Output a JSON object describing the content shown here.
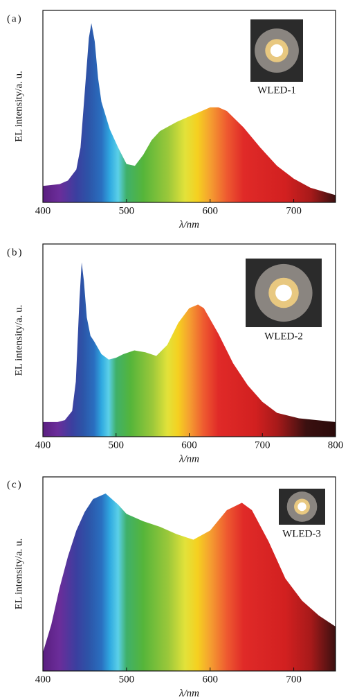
{
  "chart_data": [
    {
      "type": "area",
      "panel_label": "(a)",
      "y_label": "EL intensity/a. u.",
      "x_label": "λ/nm",
      "annotation": "WLED-1",
      "x": [
        400,
        420,
        430,
        440,
        445,
        450,
        455,
        458,
        462,
        466,
        470,
        480,
        490,
        500,
        510,
        520,
        530,
        540,
        560,
        580,
        600,
        610,
        620,
        640,
        660,
        680,
        700,
        720,
        750
      ],
      "values": [
        0.09,
        0.1,
        0.12,
        0.18,
        0.3,
        0.6,
        0.9,
        0.98,
        0.88,
        0.68,
        0.55,
        0.4,
        0.3,
        0.21,
        0.2,
        0.26,
        0.34,
        0.39,
        0.44,
        0.48,
        0.52,
        0.52,
        0.5,
        0.41,
        0.3,
        0.2,
        0.13,
        0.08,
        0.04
      ],
      "xlim": [
        400,
        750
      ],
      "xticks": [
        400,
        500,
        600,
        700
      ],
      "ylim": [
        0,
        1.05
      ]
    },
    {
      "type": "area",
      "panel_label": "(b)",
      "y_label": "EL intensity/a. u.",
      "x_label": "λ/nm",
      "annotation": "WLED-2",
      "x": [
        400,
        420,
        430,
        440,
        445,
        450,
        453,
        456,
        460,
        465,
        470,
        480,
        490,
        500,
        510,
        525,
        540,
        555,
        570,
        585,
        600,
        612,
        620,
        640,
        660,
        680,
        700,
        720,
        750,
        800
      ],
      "values": [
        0.08,
        0.08,
        0.09,
        0.14,
        0.3,
        0.75,
        0.95,
        0.85,
        0.65,
        0.55,
        0.52,
        0.45,
        0.42,
        0.43,
        0.45,
        0.47,
        0.46,
        0.44,
        0.5,
        0.62,
        0.7,
        0.72,
        0.7,
        0.56,
        0.4,
        0.28,
        0.19,
        0.13,
        0.1,
        0.08
      ],
      "xlim": [
        400,
        800
      ],
      "xticks": [
        400,
        500,
        600,
        700,
        800
      ],
      "ylim": [
        0,
        1.05
      ]
    },
    {
      "type": "area",
      "panel_label": "(c)",
      "y_label": "EL intensity/a. u.",
      "x_label": "λ/nm",
      "annotation": "WLED-3",
      "x": [
        400,
        410,
        420,
        430,
        440,
        450,
        460,
        475,
        490,
        500,
        520,
        540,
        560,
        580,
        600,
        620,
        638,
        650,
        670,
        690,
        710,
        730,
        750
      ],
      "values": [
        0.1,
        0.25,
        0.45,
        0.62,
        0.76,
        0.86,
        0.93,
        0.96,
        0.9,
        0.85,
        0.81,
        0.78,
        0.74,
        0.71,
        0.76,
        0.87,
        0.91,
        0.87,
        0.7,
        0.5,
        0.38,
        0.3,
        0.24
      ],
      "xlim": [
        400,
        750
      ],
      "xticks": [
        400,
        500,
        600,
        700
      ],
      "ylim": [
        0,
        1.05
      ]
    }
  ]
}
